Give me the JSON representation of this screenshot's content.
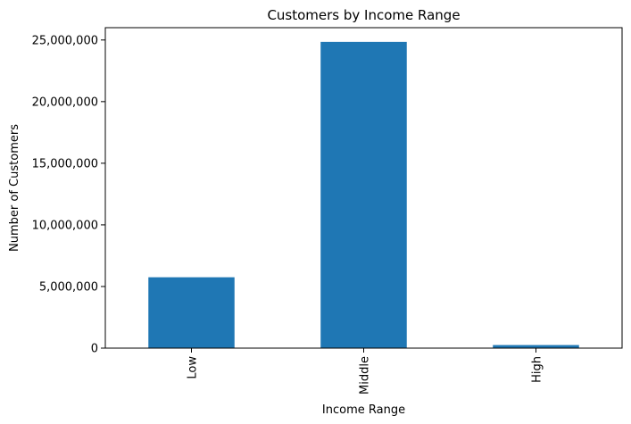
{
  "chart_data": {
    "type": "bar",
    "title": "Customers by Income Range",
    "xlabel": "Income Range",
    "ylabel": "Number of Customers",
    "categories": [
      "Low",
      "Middle",
      "High"
    ],
    "values": [
      5750000,
      24850000,
      250000
    ],
    "ylim": [
      0,
      26000000
    ],
    "yticks": [
      0,
      5000000,
      10000000,
      15000000,
      20000000,
      25000000
    ],
    "ytick_labels": [
      "0",
      "5,000,000",
      "10,000,000",
      "15,000,000",
      "20,000,000",
      "25,000,000"
    ],
    "x_tick_rotation": "vertical",
    "bar_color": "#1f77b4",
    "grid": false,
    "legend": "none"
  }
}
